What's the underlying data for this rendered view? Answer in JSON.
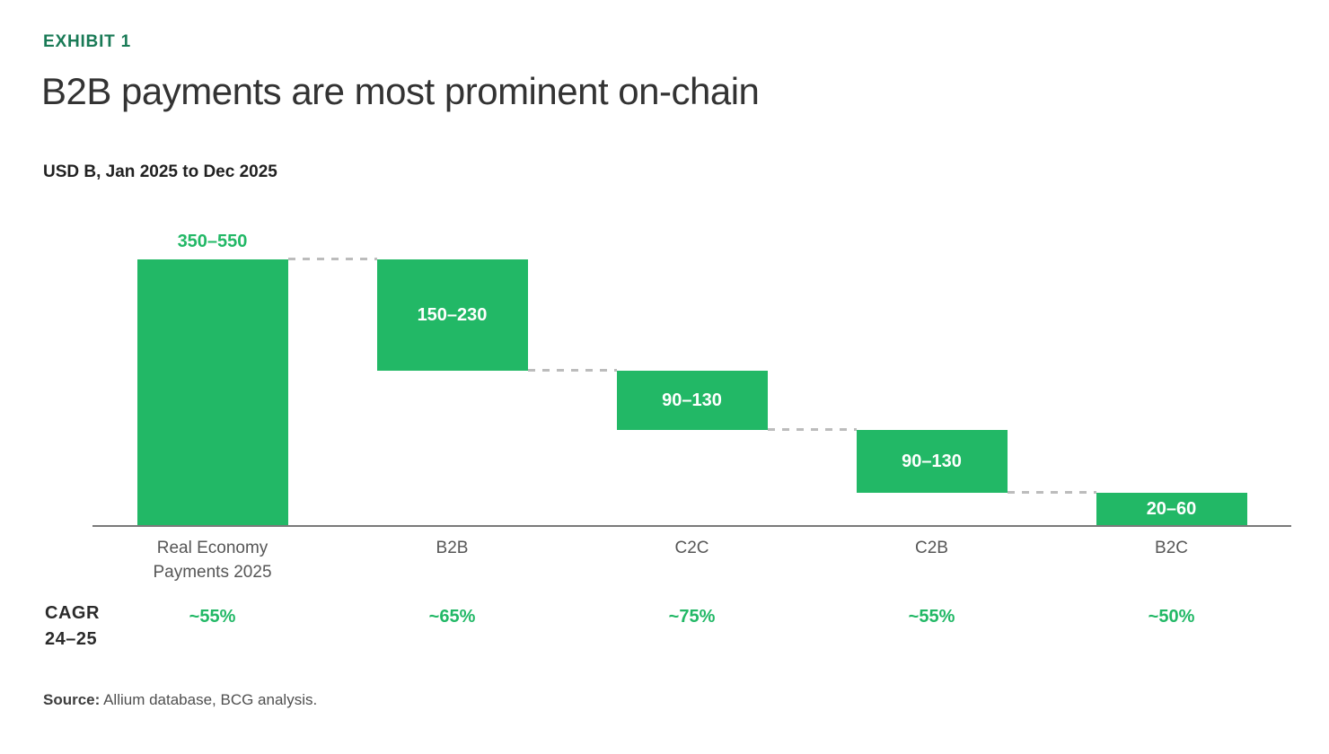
{
  "exhibit_label": "EXHIBIT 1",
  "cagr_row": {
    "line1": "CAGR",
    "line2": "24–25"
  },
  "source": {
    "prefix": "Source:",
    "text": " Allium database, BCG analysis."
  },
  "colors": {
    "bar_green": "#22b866",
    "exhibit_green": "#197a56",
    "axis_gray": "#7a7a7a",
    "connector_gray": "#bcbcbc",
    "title_color": "#333333",
    "category_color": "#565656",
    "value_label_inside": "#ffffff"
  },
  "chart_data": {
    "type": "bar",
    "subtype": "waterfall-descending",
    "title": "B2B payments are most prominent on-chain",
    "units_label": "USD B, Jan 2025 to Dec 2025",
    "xlabel": "",
    "ylabel": "USD B",
    "ylim": [
      0,
      450
    ],
    "grid": false,
    "legend": "none",
    "connector_style": "dashed",
    "categories": [
      "Real Economy Payments 2025",
      "B2B",
      "C2C",
      "C2B",
      "B2C"
    ],
    "bars": [
      {
        "category": "Real Economy Payments 2025",
        "range_label": "350–550",
        "low": 350,
        "high": 550,
        "midpoint": 450,
        "plot_value": 450,
        "segment_top": 450,
        "segment_bottom": 0,
        "value_label_position": "above",
        "cagr_24_25": "~55%"
      },
      {
        "category": "B2B",
        "range_label": "150–230",
        "low": 150,
        "high": 230,
        "midpoint": 190,
        "plot_value": 188,
        "segment_top": 450,
        "segment_bottom": 262,
        "value_label_position": "inside",
        "cagr_24_25": "~65%"
      },
      {
        "category": "C2C",
        "range_label": "90–130",
        "low": 90,
        "high": 130,
        "midpoint": 110,
        "plot_value": 101,
        "segment_top": 262,
        "segment_bottom": 161,
        "value_label_position": "inside",
        "cagr_24_25": "~75%"
      },
      {
        "category": "C2B",
        "range_label": "90–130",
        "low": 90,
        "high": 130,
        "midpoint": 110,
        "plot_value": 106,
        "segment_top": 161,
        "segment_bottom": 55,
        "value_label_position": "inside",
        "cagr_24_25": "~55%"
      },
      {
        "category": "B2C",
        "range_label": "20–60",
        "low": 20,
        "high": 60,
        "midpoint": 40,
        "plot_value": 55,
        "segment_top": 55,
        "segment_bottom": 0,
        "value_label_position": "inside",
        "cagr_24_25": "~50%"
      }
    ],
    "cagr_row_label": "CAGR 24–25",
    "source": "Source: Allium database, BCG analysis."
  }
}
